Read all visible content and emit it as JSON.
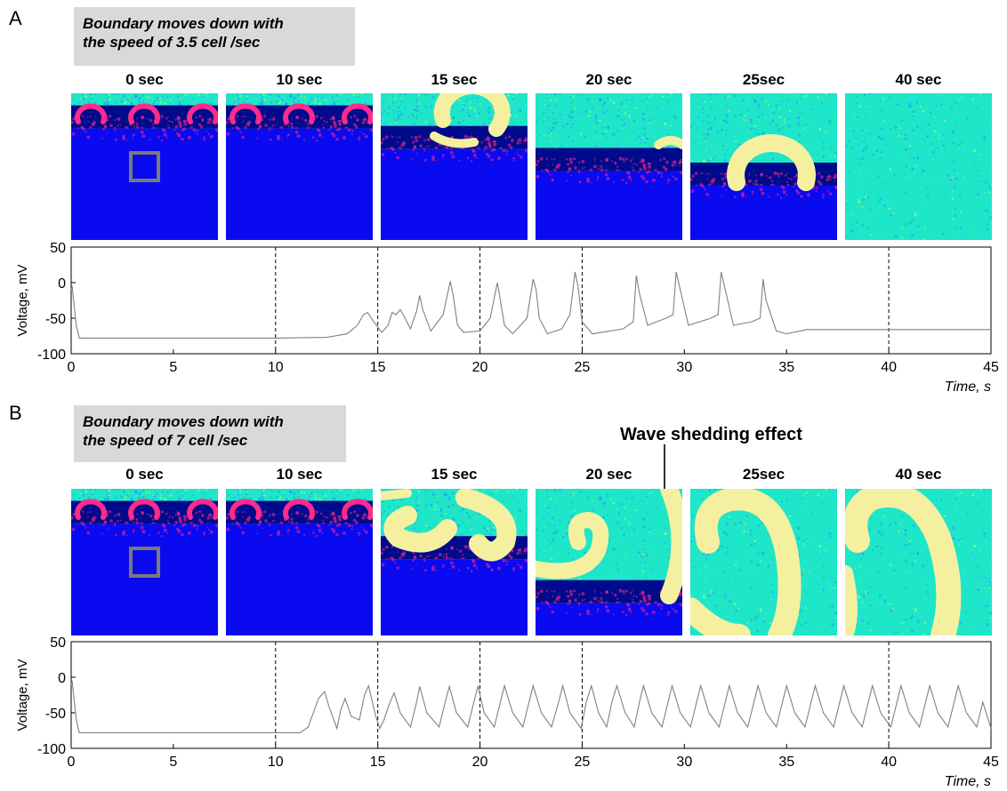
{
  "panels": [
    {
      "letter": "A",
      "caption": [
        "Boundary moves down with",
        "the speed of 3.5 cell /sec"
      ],
      "frames": [
        {
          "label": "0 sec",
          "front": 0.24,
          "spirals": "three-rings-top",
          "marker_square": true
        },
        {
          "label": "10 sec",
          "front": 0.24,
          "spirals": "three-rings-top",
          "marker_square": false
        },
        {
          "label": "15 sec",
          "front": 0.38,
          "spirals": "yellow-ring-top",
          "marker_square": false
        },
        {
          "label": "20 sec",
          "front": 0.53,
          "spirals": "small-arc-right",
          "marker_square": false
        },
        {
          "label": "25sec",
          "front": 0.63,
          "spirals": "large-ring",
          "marker_square": false
        },
        {
          "label": "40 sec",
          "front": 1.0,
          "spirals": "none",
          "marker_square": false
        }
      ]
    },
    {
      "letter": "B",
      "caption": [
        "Boundary moves down with",
        "the speed of 7 cell /sec"
      ],
      "annotation": "Wave shedding effect",
      "frames": [
        {
          "label": "0 sec",
          "front": 0.24,
          "spirals": "three-rings-top",
          "marker_square": true
        },
        {
          "label": "10 sec",
          "front": 0.24,
          "spirals": "three-rings-top",
          "marker_square": false
        },
        {
          "label": "15 sec",
          "front": 0.48,
          "spirals": "spiral-pair",
          "marker_square": false
        },
        {
          "label": "20 sec",
          "front": 0.78,
          "spirals": "spiral-hook",
          "marker_square": false
        },
        {
          "label": "25sec",
          "front": 1.0,
          "spirals": "big-spiral",
          "marker_square": false
        },
        {
          "label": "40 sec",
          "front": 1.0,
          "spirals": "big-spiral-left",
          "marker_square": false
        }
      ]
    }
  ],
  "colors": {
    "excitable": "#1ee6c8",
    "boundary": "#000a8c",
    "blue": "#0a0af0",
    "wave": "#f5f0a0",
    "magenta": "#ff2a8a",
    "trace": "#808080"
  },
  "chart_data": [
    {
      "type": "line",
      "ylabel": "Voltage, mV",
      "xlabel": "Time, s",
      "xlim": [
        0,
        45
      ],
      "ylim": [
        -100,
        50
      ],
      "xticks": [
        0,
        5,
        10,
        15,
        20,
        25,
        30,
        35,
        40,
        45
      ],
      "yticks": [
        50,
        0,
        -50,
        -100
      ],
      "vlines": [
        10,
        15,
        20,
        25,
        40
      ],
      "series": [
        {
          "x": [
            0,
            0.05,
            0.25,
            0.4,
            1,
            5,
            10,
            12.5,
            13.5,
            14,
            14.3,
            14.5,
            14.8,
            15.2,
            15.5,
            15.7,
            15.9,
            16.1,
            16.3,
            16.6,
            16.9,
            17.05,
            17.2,
            17.6,
            18.2,
            18.55,
            18.7,
            18.9,
            19.2,
            20,
            20.5,
            20.85,
            21.0,
            21.2,
            21.6,
            22.3,
            22.6,
            22.75,
            22.9,
            23.3,
            24,
            24.4,
            24.65,
            24.8,
            25.0,
            25.5,
            27,
            27.5,
            27.65,
            27.8,
            28.2,
            29.1,
            29.45,
            29.6,
            29.8,
            30.2,
            31.3,
            31.65,
            31.8,
            32.0,
            32.4,
            33.3,
            33.7,
            33.85,
            34.0,
            34.5,
            35,
            36,
            40,
            45
          ],
          "y": [
            -10,
            -5,
            -60,
            -78,
            -78,
            -78,
            -78,
            -77,
            -72,
            -60,
            -45,
            -42,
            -55,
            -70,
            -60,
            -42,
            -45,
            -38,
            -48,
            -65,
            -40,
            -18,
            -38,
            -68,
            -45,
            2,
            -20,
            -60,
            -70,
            -68,
            -50,
            0,
            -25,
            -60,
            -72,
            -50,
            5,
            -10,
            -50,
            -72,
            -65,
            -45,
            15,
            -5,
            -55,
            -72,
            -65,
            -55,
            10,
            -15,
            -60,
            -50,
            -45,
            15,
            -10,
            -60,
            -50,
            -45,
            15,
            -10,
            -60,
            -55,
            -50,
            5,
            -25,
            -68,
            -72,
            -66,
            -66,
            -66
          ]
        }
      ]
    },
    {
      "type": "line",
      "ylabel": "Voltage, mV",
      "xlabel": "Time, s",
      "xlim": [
        0,
        45
      ],
      "ylim": [
        -100,
        50
      ],
      "xticks": [
        0,
        5,
        10,
        15,
        20,
        25,
        30,
        35,
        40,
        45
      ],
      "yticks": [
        50,
        0,
        -50,
        -100
      ],
      "vlines": [
        10,
        15,
        20,
        25,
        40
      ],
      "series": [
        {
          "x": [
            0,
            0.05,
            0.25,
            0.4,
            1,
            5,
            10,
            11.2,
            11.6,
            12.1,
            12.4,
            12.6,
            13.0,
            13.2,
            13.4,
            13.7,
            14.1,
            14.35,
            14.55,
            14.9,
            15.1,
            15.3,
            15.6,
            15.8,
            16.1,
            16.6,
            16.9,
            17.05,
            17.4,
            18.0,
            18.3,
            18.5,
            18.85,
            19.4,
            19.7,
            19.9,
            20.2,
            20.7,
            21.0,
            21.2,
            21.6,
            22.1,
            22.4,
            22.6,
            23.0,
            23.5,
            23.85,
            24.05,
            24.4,
            24.95,
            25.2,
            25.45,
            25.8,
            26.2,
            26.45,
            26.7,
            27.1,
            27.55,
            27.8,
            28.0,
            28.4,
            28.9,
            29.2,
            29.4,
            29.8,
            30.3,
            30.6,
            30.8,
            31.2,
            31.7,
            32.0,
            32.2,
            32.6,
            33.1,
            33.4,
            33.6,
            34.0,
            34.5,
            34.8,
            35.0,
            35.4,
            35.9,
            36.2,
            36.4,
            36.8,
            37.3,
            37.6,
            37.8,
            38.2,
            38.7,
            39.0,
            39.2,
            39.6,
            40.1,
            40.4,
            40.6,
            41.0,
            41.5,
            41.8,
            42.0,
            42.4,
            42.9,
            43.2,
            43.4,
            43.8,
            44.3,
            44.6,
            45
          ],
          "y": [
            -10,
            -5,
            -60,
            -78,
            -78,
            -78,
            -78,
            -78,
            -70,
            -30,
            -20,
            -40,
            -72,
            -45,
            -30,
            -55,
            -60,
            -25,
            -12,
            -55,
            -72,
            -60,
            -35,
            -22,
            -50,
            -70,
            -35,
            -13,
            -50,
            -70,
            -35,
            -13,
            -50,
            -70,
            -35,
            -12,
            -50,
            -70,
            -35,
            -12,
            -50,
            -70,
            -35,
            -12,
            -50,
            -70,
            -35,
            -12,
            -50,
            -72,
            -35,
            -12,
            -50,
            -70,
            -35,
            -12,
            -50,
            -70,
            -35,
            -12,
            -50,
            -70,
            -35,
            -12,
            -50,
            -70,
            -35,
            -12,
            -50,
            -70,
            -35,
            -12,
            -50,
            -70,
            -35,
            -12,
            -50,
            -70,
            -35,
            -12,
            -50,
            -70,
            -35,
            -12,
            -50,
            -70,
            -35,
            -12,
            -50,
            -70,
            -35,
            -12,
            -50,
            -70,
            -35,
            -12,
            -50,
            -70,
            -35,
            -12,
            -50,
            -70,
            -35,
            -12,
            -50,
            -70,
            -35,
            -72
          ]
        }
      ]
    }
  ]
}
